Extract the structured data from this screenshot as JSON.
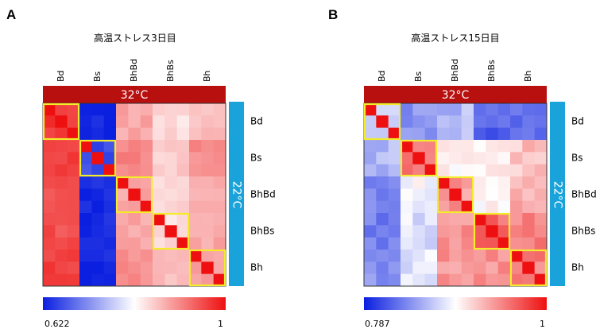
{
  "chart_data": [
    {
      "type": "heatmap",
      "panel": "A",
      "title": "高温ストレス3日目",
      "top_condition": "32°C",
      "side_condition": "22°C",
      "top_band_color": "#b80f0f",
      "side_band_color": "#1aa3da",
      "column_groups": [
        "Bd",
        "Bs",
        "BhBd",
        "BhBs",
        "Bh"
      ],
      "row_groups": [
        "Bd",
        "Bs",
        "BhBd",
        "BhBs",
        "Bh"
      ],
      "replicates_per_group": 3,
      "highlight_color": "#f2ec2a",
      "colorscale": {
        "min": 0.622,
        "max": 1,
        "min_label": "0.622",
        "max_label": "1",
        "colors": [
          "#0a1fe0",
          "#ffffff",
          "#ee1010"
        ]
      },
      "group_correlation": [
        [
          0.97,
          0.63,
          0.88,
          0.84,
          0.86
        ],
        [
          0.96,
          0.66,
          0.91,
          0.85,
          0.9
        ],
        [
          0.95,
          0.63,
          0.88,
          0.84,
          0.88
        ],
        [
          0.95,
          0.63,
          0.88,
          0.84,
          0.88
        ],
        [
          0.96,
          0.63,
          0.9,
          0.86,
          0.89
        ]
      ]
    },
    {
      "type": "heatmap",
      "panel": "B",
      "title": "高温ストレス15日目",
      "top_condition": "32°C",
      "side_condition": "22°C",
      "top_band_color": "#b80f0f",
      "side_band_color": "#1aa3da",
      "column_groups": [
        "Bd",
        "Bs",
        "BhBd",
        "BhBs",
        "Bh"
      ],
      "row_groups": [
        "Bd",
        "Bs",
        "BhBd",
        "BhBs",
        "Bh"
      ],
      "replicates_per_group": 3,
      "highlight_color": "#f2ec2a",
      "colorscale": {
        "min": 0.787,
        "max": 1,
        "min_label": "0.787",
        "max_label": "1",
        "colors": [
          "#0a1fe0",
          "#ffffff",
          "#ee1010"
        ]
      },
      "group_correlation": [
        [
          0.87,
          0.84,
          0.86,
          0.82,
          0.83
        ],
        [
          0.86,
          0.95,
          0.9,
          0.9,
          0.92
        ],
        [
          0.84,
          0.89,
          0.94,
          0.9,
          0.93
        ],
        [
          0.83,
          0.88,
          0.94,
          0.96,
          0.95
        ],
        [
          0.84,
          0.88,
          0.94,
          0.94,
          0.95
        ]
      ]
    }
  ]
}
